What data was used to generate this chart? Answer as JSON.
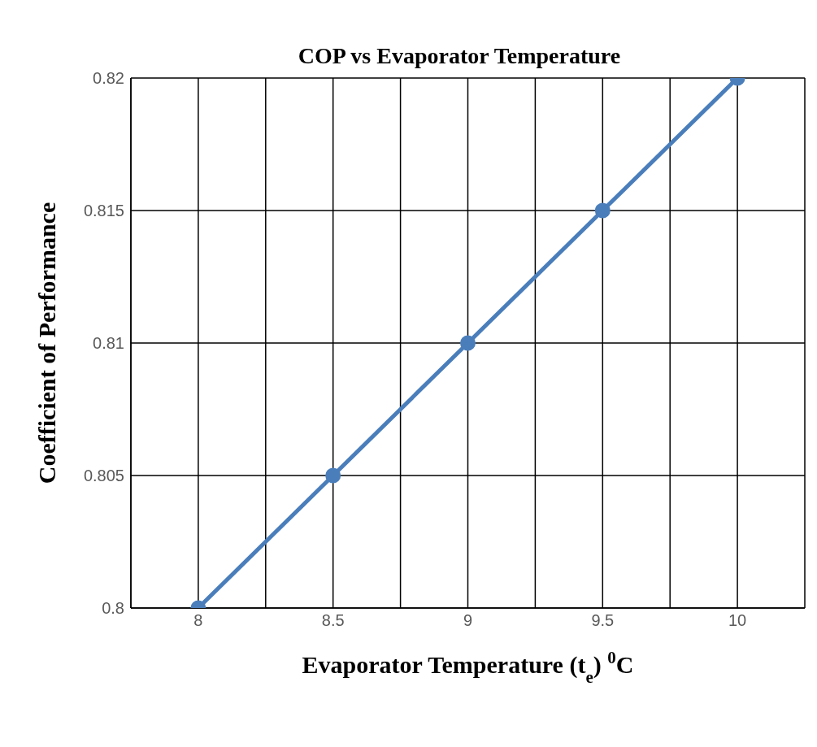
{
  "chart_data": {
    "type": "line",
    "title": "COP vs Evaporator Temperature",
    "xlabel": "Evaporator Temperature (t$_{e}$) $^{0}$C",
    "ylabel": "Coefficient of Performance",
    "x": [
      8,
      8.5,
      9,
      9.5,
      10
    ],
    "series": [
      {
        "color": "#4a7ebb",
        "values": [
          0.8,
          0.805,
          0.81,
          0.815,
          0.82
        ]
      }
    ],
    "xlim": [
      7.75,
      10.25
    ],
    "xticks": [
      {
        "value": 7.75,
        "label": null
      },
      8,
      {
        "value": 8.25,
        "label": null
      },
      8.5,
      {
        "value": 8.75,
        "label": null
      },
      9,
      {
        "value": 9.25,
        "label": null
      },
      9.5,
      {
        "value": 9.75,
        "label": null
      },
      10,
      {
        "value": 10.25,
        "label": null
      }
    ],
    "ylim": [
      0.8,
      0.82
    ],
    "yticks": [
      0.8,
      0.805,
      0.81,
      0.815,
      0.82
    ],
    "grid": true,
    "marker": "circle",
    "line_style": "solid"
  }
}
